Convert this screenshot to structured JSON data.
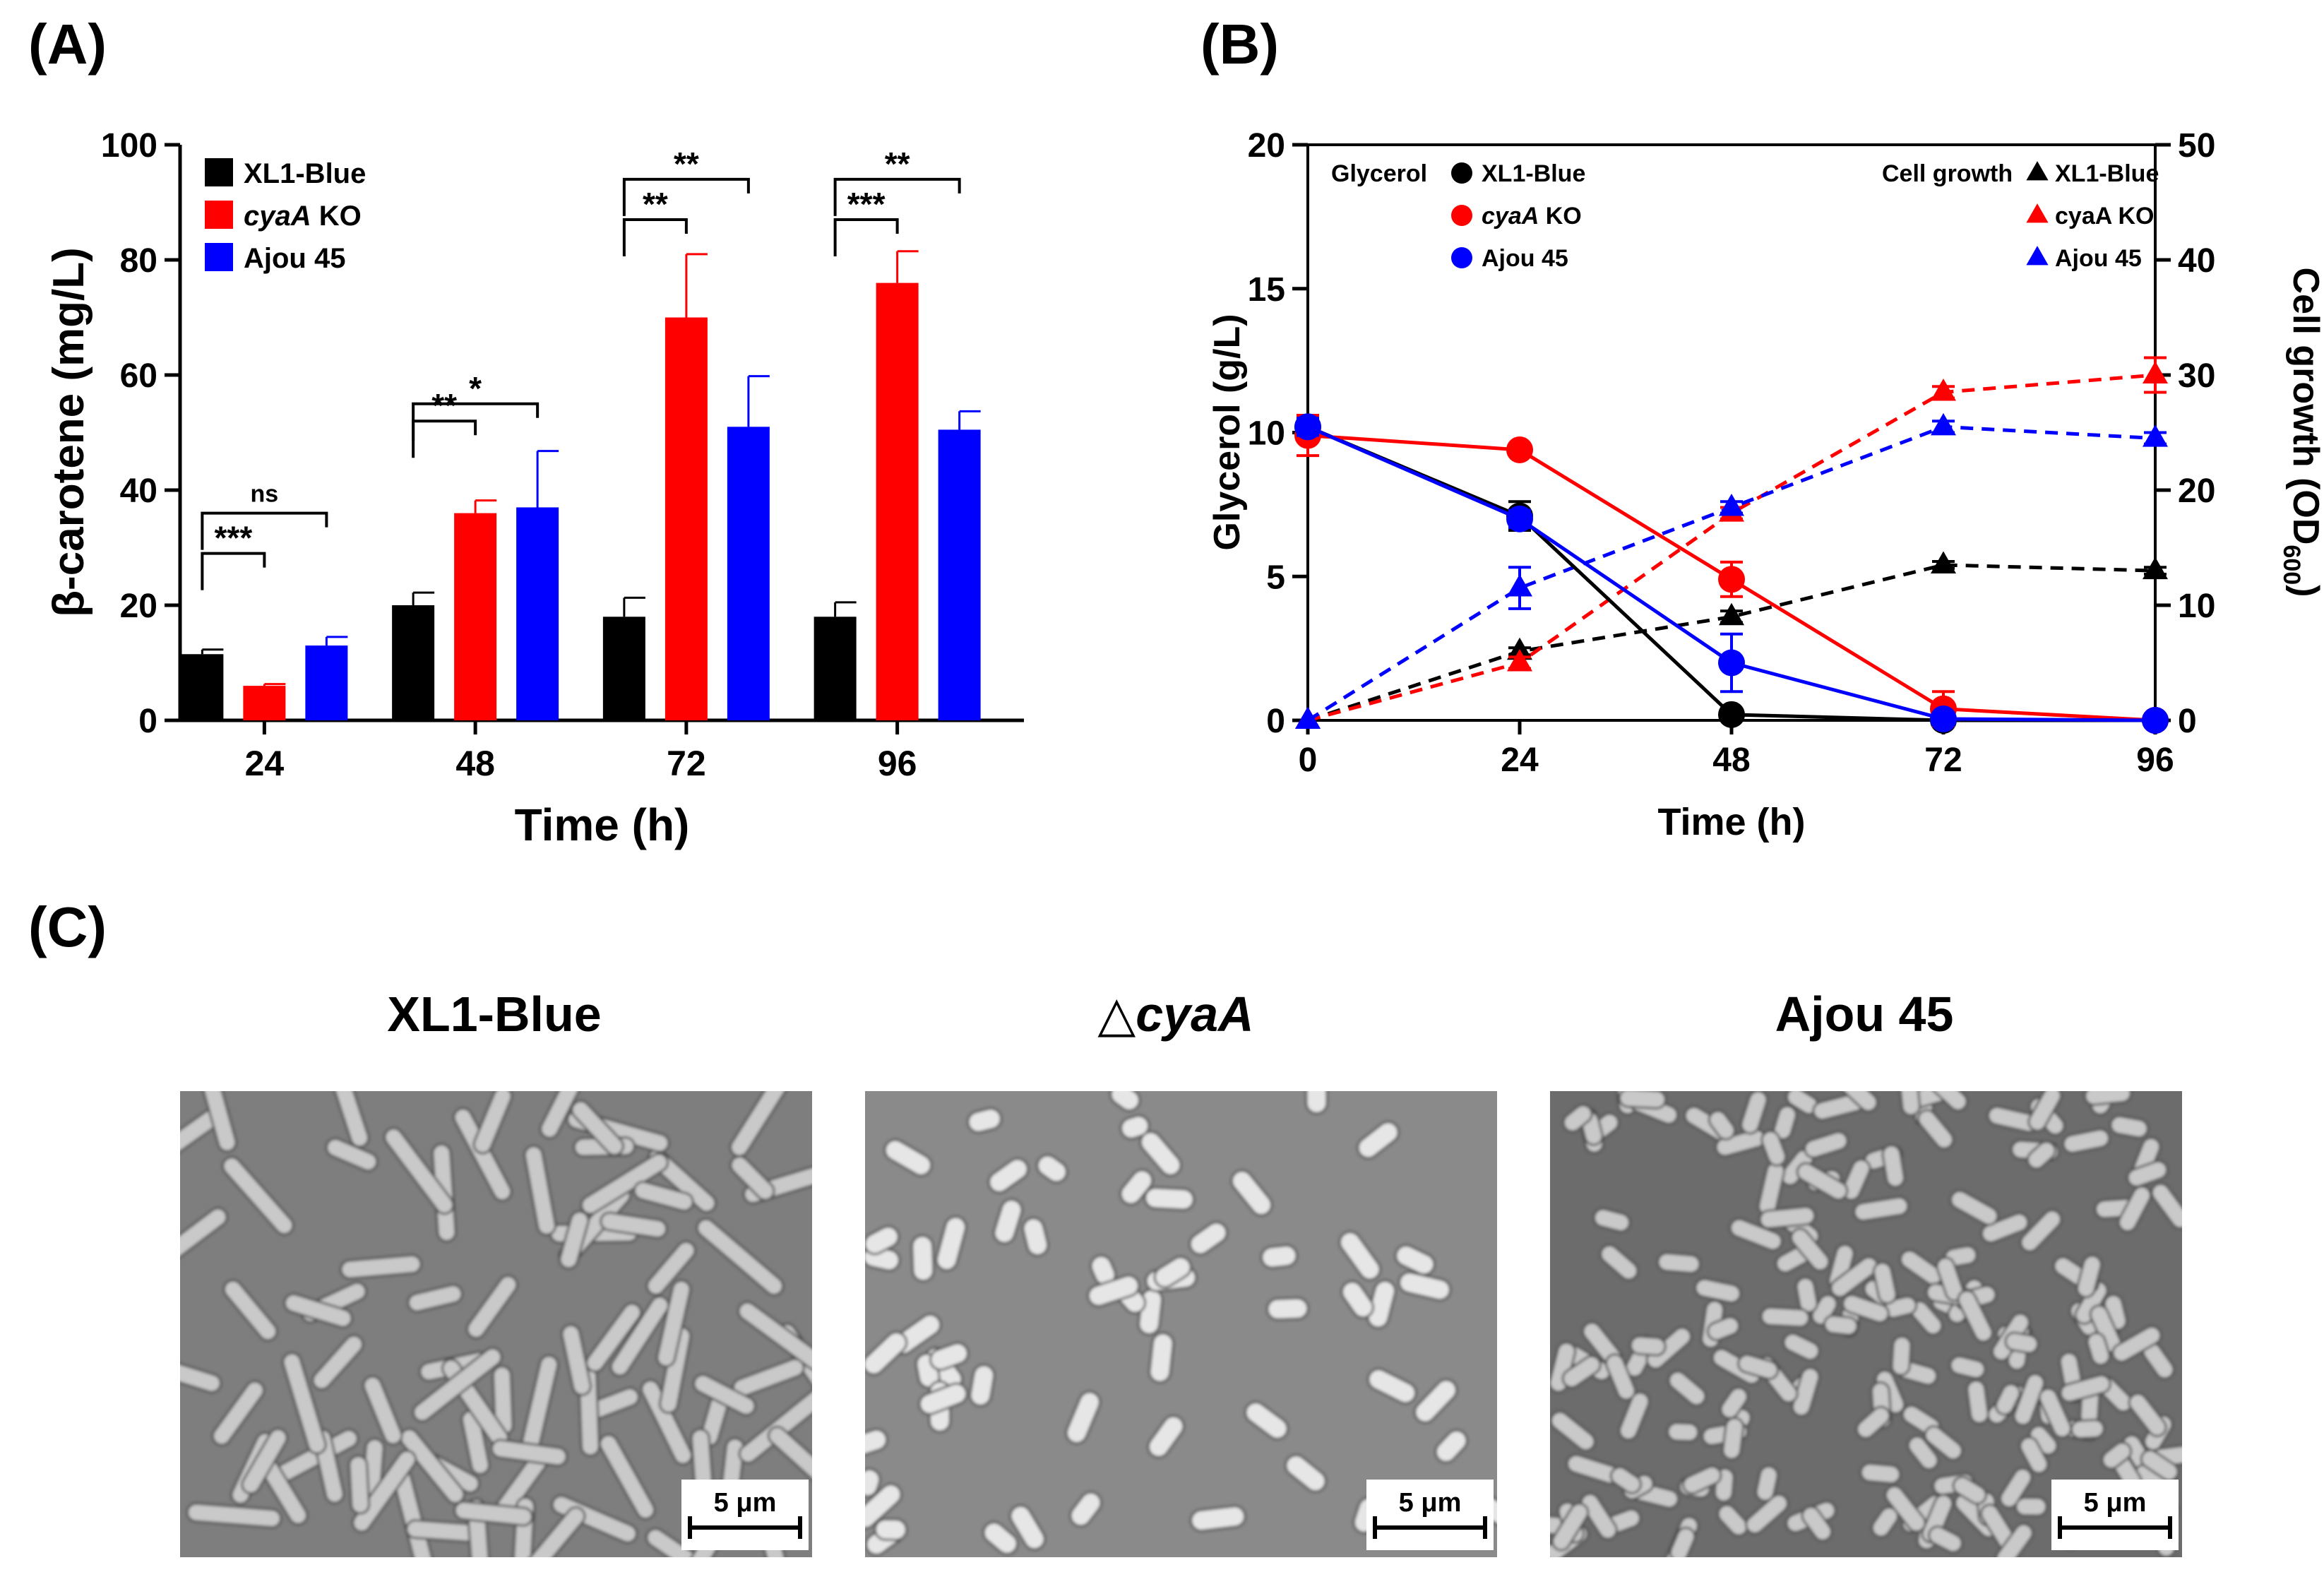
{
  "panels": {
    "a_label": "(A)",
    "b_label": "(B)",
    "c_label": "(C)"
  },
  "chart_data": [
    {
      "panel": "A",
      "type": "bar",
      "xlabel": "Time  (h)",
      "ylabel": "β-carotene (mg/L)",
      "ylim": [
        0,
        100
      ],
      "yticks": [
        0,
        20,
        40,
        60,
        80,
        100
      ],
      "categories": [
        "24",
        "48",
        "72",
        "96"
      ],
      "legend_position": "top-left",
      "series": [
        {
          "name": "XL1-Blue",
          "name_italic": "",
          "name_rest": "XL1-Blue",
          "color": "#000000",
          "values": [
            11.5,
            20,
            18,
            18
          ],
          "errors": [
            0.8,
            2.2,
            3.3,
            2.5
          ]
        },
        {
          "name": "cyaA KO",
          "name_italic": "cyaA",
          "name_rest": " KO",
          "color": "#ff0000",
          "values": [
            6,
            36,
            70,
            76
          ],
          "errors": [
            0.3,
            2.2,
            11,
            5.5
          ]
        },
        {
          "name": "Ajou 45",
          "name_italic": "",
          "name_rest": "Ajou 45",
          "color": "#0000ff",
          "values": [
            13,
            37,
            51,
            50.5
          ],
          "errors": [
            1.5,
            9.8,
            8.8,
            3.2
          ]
        }
      ],
      "significance": [
        {
          "category": 0,
          "from": 0,
          "to": 1,
          "label": "***",
          "y": 29,
          "level": 0
        },
        {
          "category": 0,
          "from": 0,
          "to": 2,
          "label": "ns",
          "y": 36,
          "level": 1
        },
        {
          "category": 1,
          "from": 0,
          "to": 1,
          "label": "**",
          "y": 52,
          "level": 0
        },
        {
          "category": 1,
          "from": 0,
          "to": 2,
          "label": "*",
          "y": 55,
          "level": 1
        },
        {
          "category": 2,
          "from": 0,
          "to": 1,
          "label": "**",
          "y": 87,
          "level": 0
        },
        {
          "category": 2,
          "from": 0,
          "to": 2,
          "label": "**",
          "y": 94,
          "level": 1
        },
        {
          "category": 3,
          "from": 0,
          "to": 1,
          "label": "***",
          "y": 87,
          "level": 0
        },
        {
          "category": 3,
          "from": 0,
          "to": 2,
          "label": "**",
          "y": 94,
          "level": 1
        }
      ]
    },
    {
      "panel": "B",
      "type": "line",
      "xlabel": "Time (h)",
      "ylabel": "Glycerol (g/L)",
      "y2label_main": "Cell growth (OD",
      "y2label_sub": "600",
      "y2label_close": ")",
      "x": [
        0,
        24,
        48,
        72,
        96
      ],
      "xlim": [
        0,
        96
      ],
      "ylim": [
        0,
        20
      ],
      "yticks": [
        0,
        5,
        10,
        15,
        20
      ],
      "y2lim": [
        0,
        50
      ],
      "y2ticks": [
        0,
        10,
        20,
        30,
        40,
        50
      ],
      "legend_glycerol_title": "Glycerol",
      "legend_growth_title": "Cell growth",
      "glycerol_series": [
        {
          "name": "XL1-Blue",
          "name_italic": "",
          "name_rest": "XL1-Blue",
          "color": "#000000",
          "values": [
            10.2,
            7.1,
            0.2,
            0,
            0
          ],
          "errors": [
            0.3,
            0.5,
            0.1,
            0,
            0
          ]
        },
        {
          "name": "cyaA KO",
          "name_italic": "cyaA",
          "name_rest": " KO",
          "color": "#ff0000",
          "values": [
            9.9,
            9.4,
            4.9,
            0.4,
            0
          ],
          "errors": [
            0.7,
            0.2,
            0.6,
            0.6,
            0
          ]
        },
        {
          "name": "Ajou 45",
          "name_italic": "",
          "name_rest": "Ajou 45",
          "color": "#0000ff",
          "values": [
            10.2,
            7.0,
            2.0,
            0.05,
            0
          ],
          "errors": [
            0.3,
            0.3,
            1.0,
            0,
            0
          ]
        }
      ],
      "growth_series": [
        {
          "name": "XL1-Blue",
          "color": "#000000",
          "values": [
            0,
            6,
            9,
            13.5,
            13
          ],
          "errors": [
            0,
            0.3,
            0.5,
            0.3,
            0.3
          ]
        },
        {
          "name": "cyaA KO",
          "color": "#ff0000",
          "values": [
            0,
            5,
            18,
            28.5,
            30
          ],
          "errors": [
            0,
            0.5,
            0.5,
            0.5,
            1.5
          ]
        },
        {
          "name": "Ajou 45",
          "color": "#0000ff",
          "values": [
            0,
            11.5,
            18.5,
            25.5,
            24.5
          ],
          "errors": [
            0,
            1.8,
            0.5,
            0.5,
            0.5
          ]
        }
      ]
    }
  ],
  "micrographs": {
    "items": [
      {
        "title_prefix": "",
        "title_italic": "",
        "title_rest": "XL1-Blue",
        "style": "long-rods"
      },
      {
        "title_prefix": "△",
        "title_italic": "cyaA",
        "title_rest": "",
        "style": "short-sparse"
      },
      {
        "title_prefix": "",
        "title_italic": "",
        "title_rest": "Ajou 45",
        "style": "dense"
      }
    ],
    "scale_bar_label": "5 μm"
  }
}
